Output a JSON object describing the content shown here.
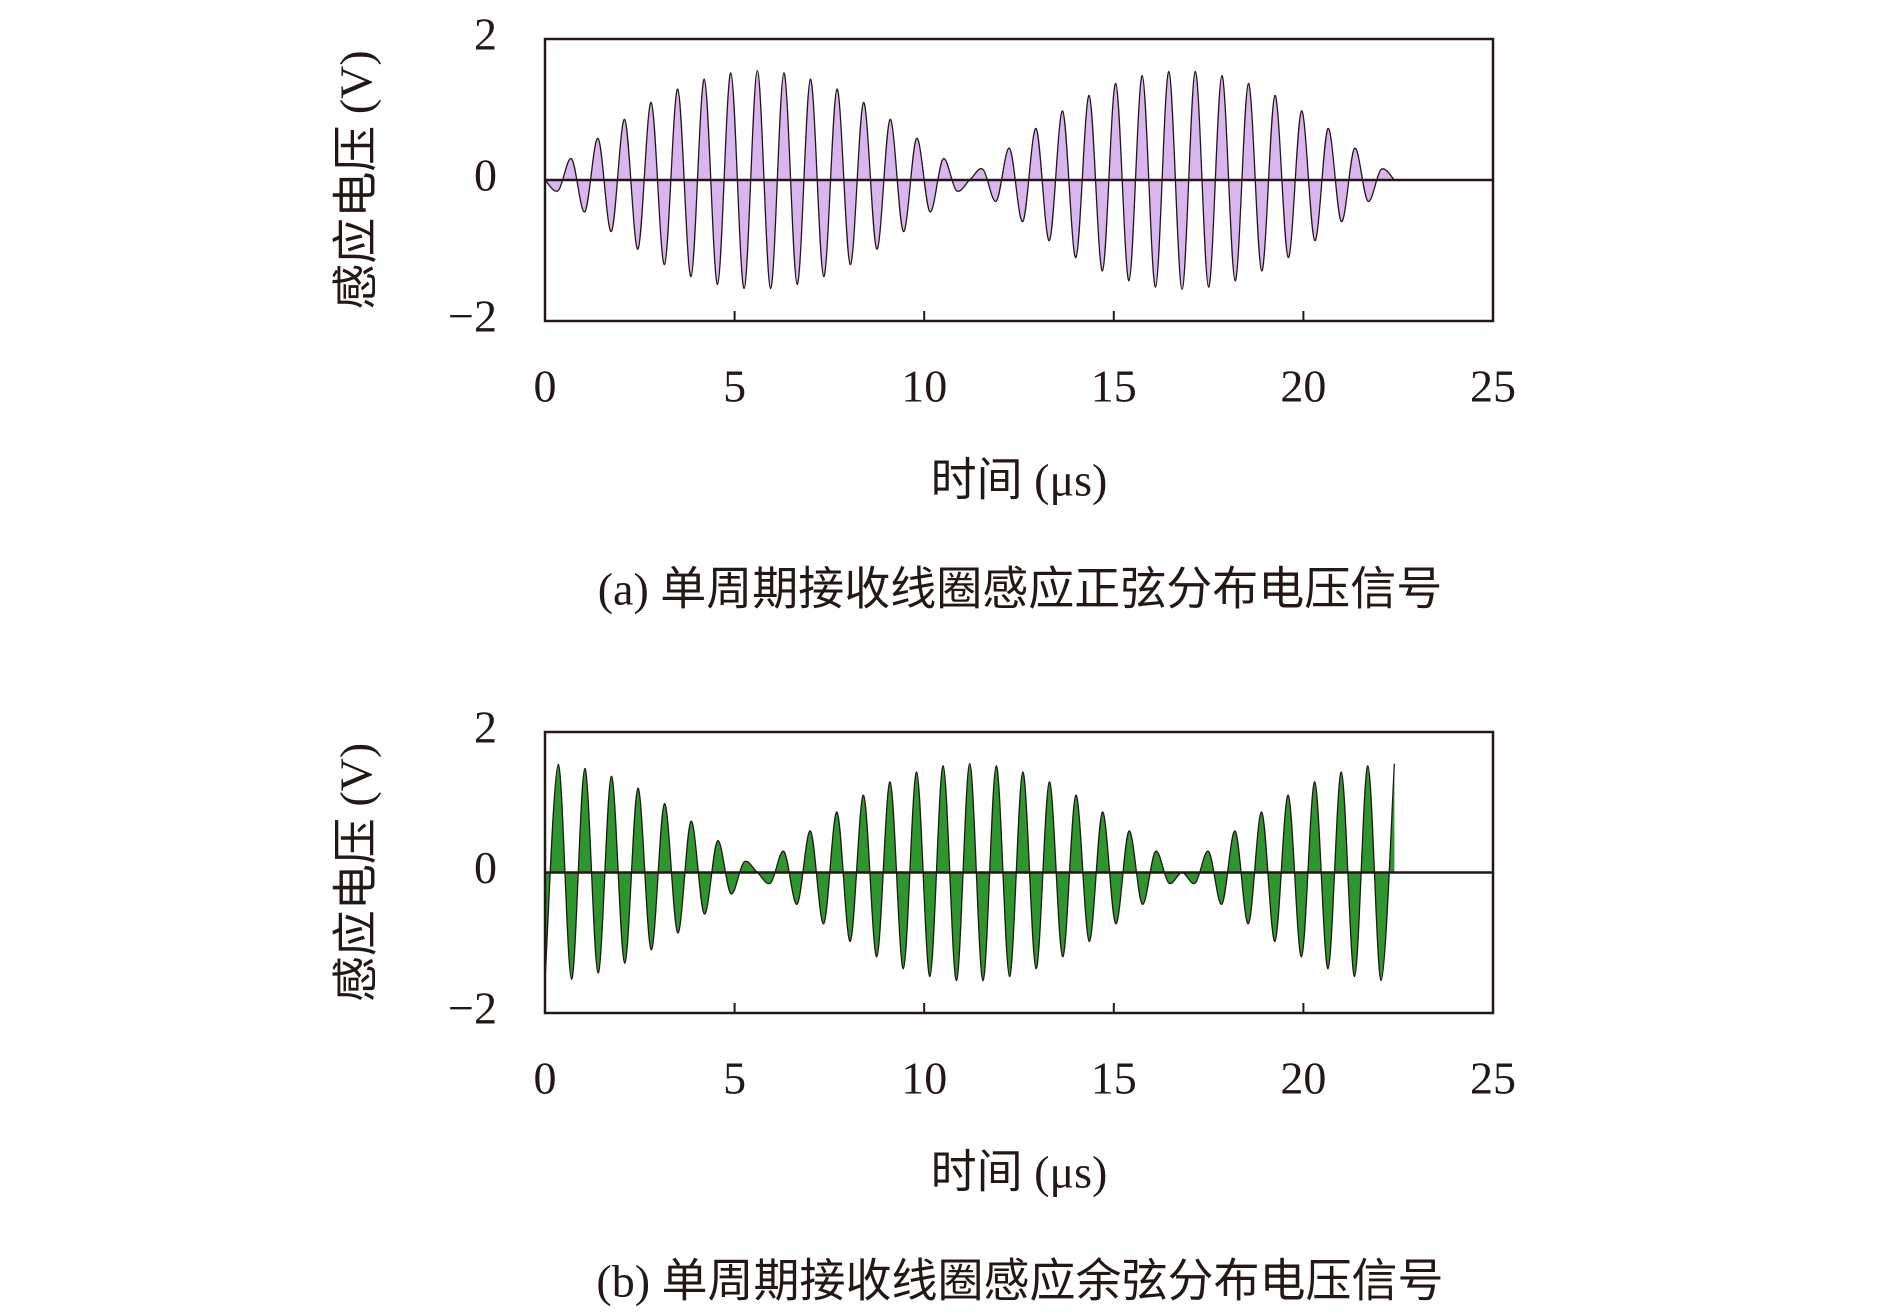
{
  "chart_data": [
    {
      "type": "area",
      "caption": "(a) 单周期接收线圈感应正弦分布电压信号",
      "x_label": "时间 (μs)",
      "y_label": "感应电压 (V)",
      "xlim": [
        0,
        25
      ],
      "xticks": [
        0,
        5,
        10,
        15,
        20,
        25
      ],
      "ylim": [
        -2,
        2
      ],
      "yticks": [
        {
          "value": -2,
          "label": "−2"
        },
        0,
        2
      ],
      "series": [
        {
          "color": "#dab6f0",
          "x": [
            0,
            0.35,
            0.7,
            1.05,
            1.4,
            1.75,
            2.1,
            2.45,
            2.8,
            3.15,
            3.5,
            3.85,
            4.2,
            4.55,
            4.9,
            5.25,
            5.6,
            5.95,
            6.3,
            6.65,
            7,
            7.35,
            7.7,
            8.05,
            8.4,
            8.75,
            9.1,
            9.45,
            9.8,
            10.15,
            10.5,
            10.85,
            11.2,
            11.55,
            11.9,
            12.25,
            12.6,
            12.95,
            13.3,
            13.65,
            14,
            14.35,
            14.7,
            15.05,
            15.4,
            15.75,
            16.1,
            16.45,
            16.8,
            17.15,
            17.5,
            17.85,
            18.2,
            18.55,
            18.9,
            19.25,
            19.6,
            19.95,
            20.3,
            20.65,
            21,
            21.35,
            21.7,
            22.05,
            22.4
          ],
          "values": [
            0,
            -0.15,
            0.3,
            -0.45,
            0.59,
            -0.73,
            0.86,
            -0.98,
            1.1,
            -1.2,
            1.29,
            -1.37,
            1.43,
            -1.48,
            1.52,
            -1.54,
            1.55,
            -1.54,
            1.52,
            -1.48,
            1.43,
            -1.37,
            1.29,
            -1.2,
            1.1,
            -0.98,
            0.86,
            -0.73,
            0.59,
            -0.45,
            0.3,
            -0.15,
            0,
            0.15,
            -0.3,
            0.45,
            -0.59,
            0.73,
            -0.86,
            0.98,
            -1.1,
            1.2,
            -1.29,
            1.37,
            -1.43,
            1.48,
            -1.52,
            1.54,
            -1.55,
            1.54,
            -1.52,
            1.48,
            -1.43,
            1.37,
            -1.29,
            1.2,
            -1.1,
            0.98,
            -0.86,
            0.73,
            -0.59,
            0.45,
            -0.3,
            0.15,
            0
          ]
        }
      ]
    },
    {
      "type": "area",
      "caption": "(b) 单周期接收线圈感应余弦分布电压信号",
      "x_label": "时间 (μs)",
      "y_label": "感应电压 (V)",
      "xlim": [
        0,
        25
      ],
      "xticks": [
        0,
        5,
        10,
        15,
        20,
        25
      ],
      "ylim": [
        -2,
        2
      ],
      "yticks": [
        {
          "value": -2,
          "label": "−2"
        },
        0,
        2
      ],
      "series": [
        {
          "color": "#2e962e",
          "x": [
            0,
            0.35,
            0.7,
            1.05,
            1.4,
            1.75,
            2.1,
            2.45,
            2.8,
            3.15,
            3.5,
            3.85,
            4.2,
            4.55,
            4.9,
            5.25,
            5.6,
            5.95,
            6.3,
            6.65,
            7,
            7.35,
            7.7,
            8.05,
            8.4,
            8.75,
            9.1,
            9.45,
            9.8,
            10.15,
            10.5,
            10.85,
            11.2,
            11.55,
            11.9,
            12.25,
            12.6,
            12.95,
            13.3,
            13.65,
            14,
            14.35,
            14.7,
            15.05,
            15.4,
            15.75,
            16.1,
            16.45,
            16.8,
            17.15,
            17.5,
            17.85,
            18.2,
            18.55,
            18.9,
            19.25,
            19.6,
            19.95,
            20.3,
            20.65,
            21,
            21.35,
            21.7,
            22.05,
            22.4
          ],
          "values": [
            -1.55,
            1.54,
            -1.52,
            1.48,
            -1.43,
            1.37,
            -1.29,
            1.2,
            -1.1,
            0.98,
            -0.86,
            0.73,
            -0.59,
            0.45,
            -0.3,
            0.15,
            0,
            -0.15,
            0.3,
            -0.45,
            0.59,
            -0.73,
            0.86,
            -0.98,
            1.1,
            -1.2,
            1.29,
            -1.37,
            1.43,
            -1.48,
            1.52,
            -1.54,
            1.55,
            -1.54,
            1.52,
            -1.48,
            1.43,
            -1.37,
            1.29,
            -1.2,
            1.1,
            -0.98,
            0.86,
            -0.73,
            0.59,
            -0.45,
            0.3,
            -0.15,
            0,
            -0.15,
            0.3,
            -0.45,
            0.59,
            -0.73,
            0.86,
            -0.98,
            1.1,
            -1.2,
            1.29,
            -1.37,
            1.43,
            -1.48,
            1.52,
            -1.54,
            1.55
          ]
        }
      ]
    }
  ]
}
